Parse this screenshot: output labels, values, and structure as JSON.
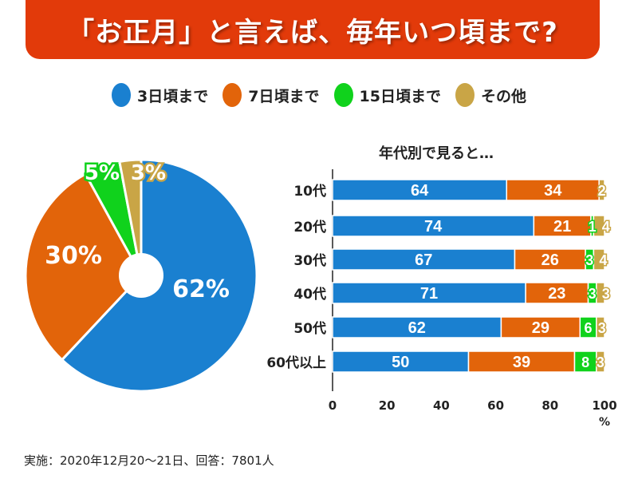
{
  "title": "「お正月」と言えば、毎年いつ頃まで?",
  "legend": [
    {
      "label": "3日頃まで",
      "color": "#1a80d0"
    },
    {
      "label": "7日頃まで",
      "color": "#e2640a"
    },
    {
      "label": "15日頃まで",
      "color": "#10d21c"
    },
    {
      "label": "その他",
      "color": "#c9a546"
    }
  ],
  "footer": "実施：2020年12月20～21日、回答：7801人",
  "chart_data": [
    {
      "type": "pie",
      "donut": true,
      "categories": [
        "3日頃まで",
        "7日頃まで",
        "15日頃まで",
        "その他"
      ],
      "values": [
        62,
        30,
        5,
        3
      ],
      "labels": [
        "62%",
        "30%",
        "5%",
        "3%"
      ],
      "colors": [
        "#1a80d0",
        "#e2640a",
        "#10d21c",
        "#c9a546"
      ]
    },
    {
      "type": "bar",
      "orientation": "horizontal",
      "stacked": true,
      "title": "年代別で見ると…",
      "categories": [
        "10代",
        "20代",
        "30代",
        "40代",
        "50代",
        "60代以上"
      ],
      "series": [
        {
          "name": "3日頃まで",
          "values": [
            64,
            74,
            67,
            71,
            62,
            50
          ]
        },
        {
          "name": "7日頃まで",
          "values": [
            34,
            21,
            26,
            23,
            29,
            39
          ]
        },
        {
          "name": "15日頃まで",
          "values": [
            0,
            1,
            3,
            3,
            6,
            8
          ]
        },
        {
          "name": "その他",
          "values": [
            2,
            4,
            4,
            3,
            3,
            3
          ]
        }
      ],
      "xlim": [
        0,
        100
      ],
      "xticks": [
        "0",
        "20",
        "40",
        "60",
        "80",
        "100"
      ],
      "xunit": "%",
      "grid": false
    }
  ]
}
